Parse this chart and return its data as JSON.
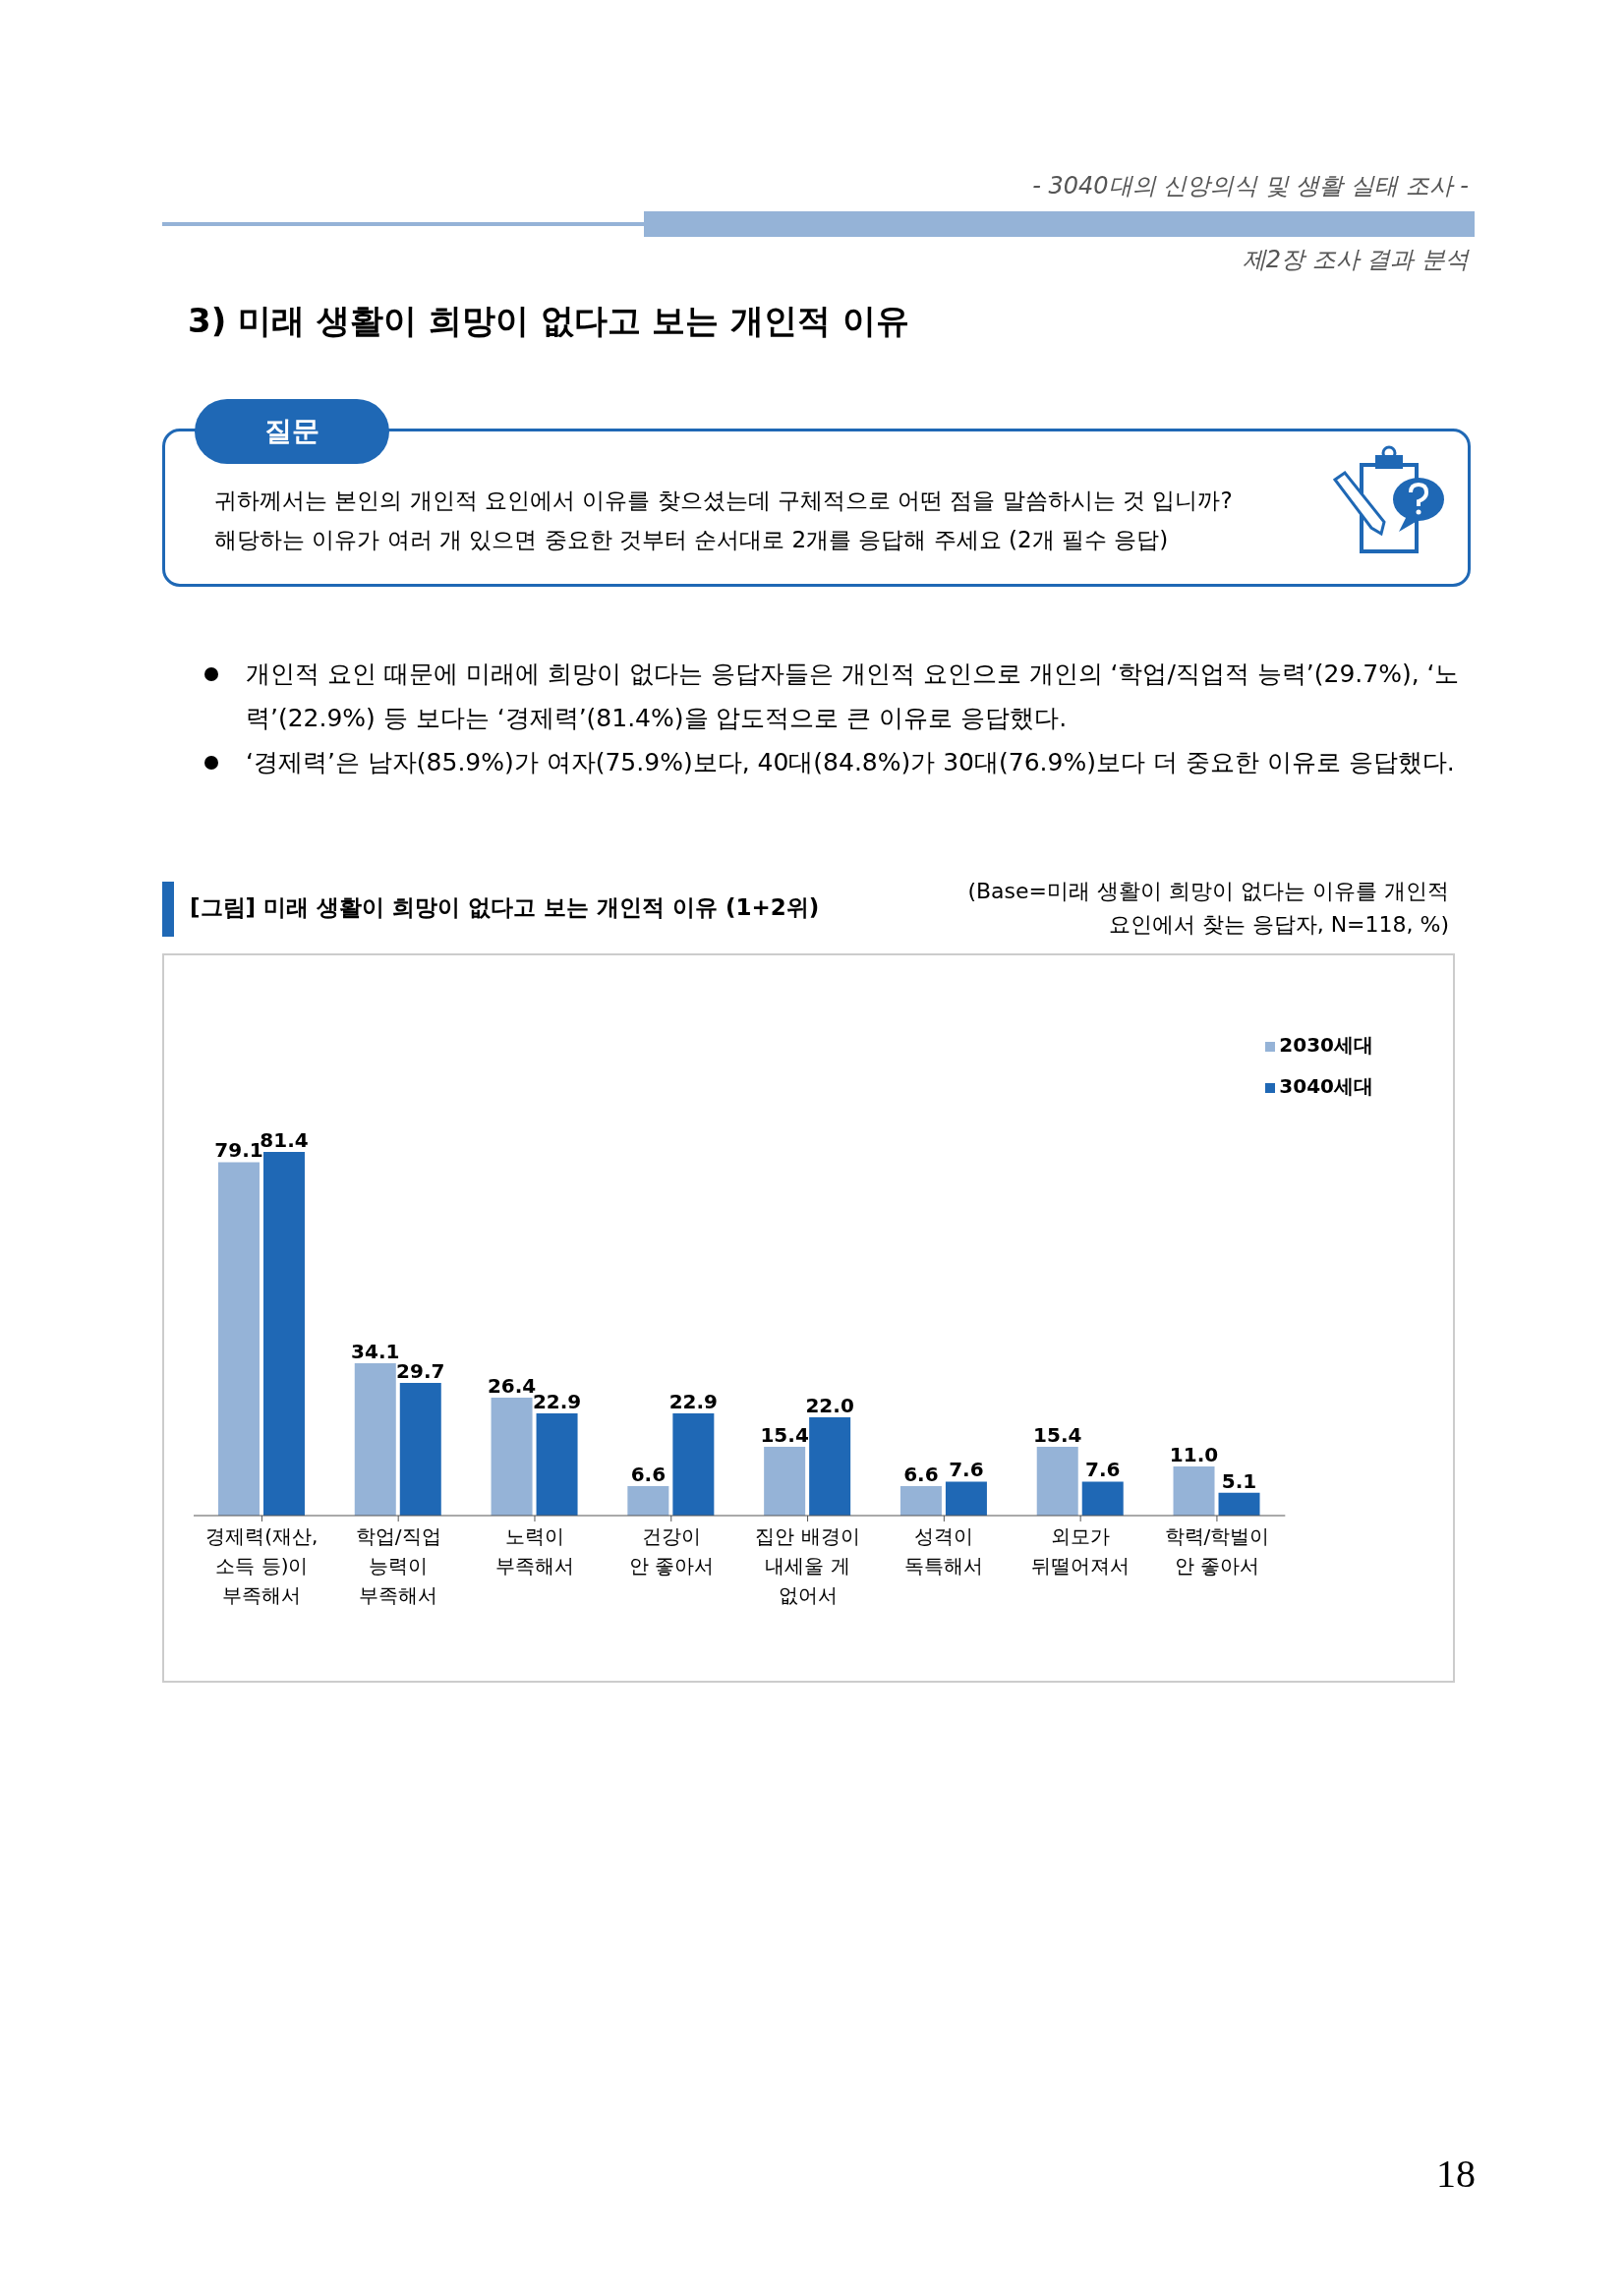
{
  "chart_data": {
    "type": "bar",
    "title": "[그림] 미래 생활이 희망이 없다고 보는 개인적 이유 (1+2위)",
    "subtitle": "(Base=미래 생활이 희망이 없다는 이유를 개인적\n요인에서 찾는 응답자, N=118, %)",
    "annotations": [
      "- 3040대의 신앙의식 및 생활 실태 조사 -",
      "제2장 조사 결과 분석",
      "3) 미래 생활이 희망이 없다고 보는 개인적 이유",
      "질문",
      "귀하께서는 본인의 개인적 요인에서 이유를 찾으셨는데 구체적으로 어떤 점을 말씀하시는 것 입니까?",
      "해당하는 이유가 여러 개 있으면 중요한 것부터 순서대로 2개를 응답해 주세요 (2개 필수 응답)",
      "개인적 요인 때문에 미래에 희망이 없다는 응답자들은 개인적 요인으로 개인의 ‘학업/직업적 능력’(29.7%), ‘노력’(22.9%) 등 보다는 ‘경제력’(81.4%)을 압도적으로 큰 이유로 응답했다.",
      "‘경제력’은 남자(85.9%)가 여자(75.9%)보다, 40대(84.8%)가 30대(76.9%)보다 더 중요한 이유로 응답했다.",
      "18"
    ],
    "categories": [
      "경제력(재산,\n소득 등)이\n부족해서",
      "학업/직업\n능력이\n부족해서",
      "노력이\n부족해서",
      "건강이\n안 좋아서",
      "집안 배경이\n내세울 게\n없어서",
      "성격이\n독특해서",
      "외모가\n뒤떨어져서",
      "학력/학벌이\n안 좋아서"
    ],
    "series": [
      {
        "name": "2030세대",
        "color": "#95b3d7",
        "values": [
          79.1,
          34.1,
          26.4,
          6.6,
          15.4,
          6.6,
          15.4,
          11
        ],
        "value_labels": [
          "79.1",
          "34.1",
          "26.4",
          "6.6",
          "15.4",
          "6.6",
          "15.4",
          "11.0"
        ]
      },
      {
        "name": "3040세대",
        "color": "#1f68b5",
        "values": [
          81.4,
          29.7,
          22.9,
          22.9,
          22,
          7.6,
          7.6,
          5.1
        ],
        "value_labels": [
          "81.4",
          "29.7",
          "22.9",
          "22.9",
          "22.0",
          "7.6",
          "7.6",
          "5.1"
        ]
      }
    ],
    "legend": "top right"
  }
}
